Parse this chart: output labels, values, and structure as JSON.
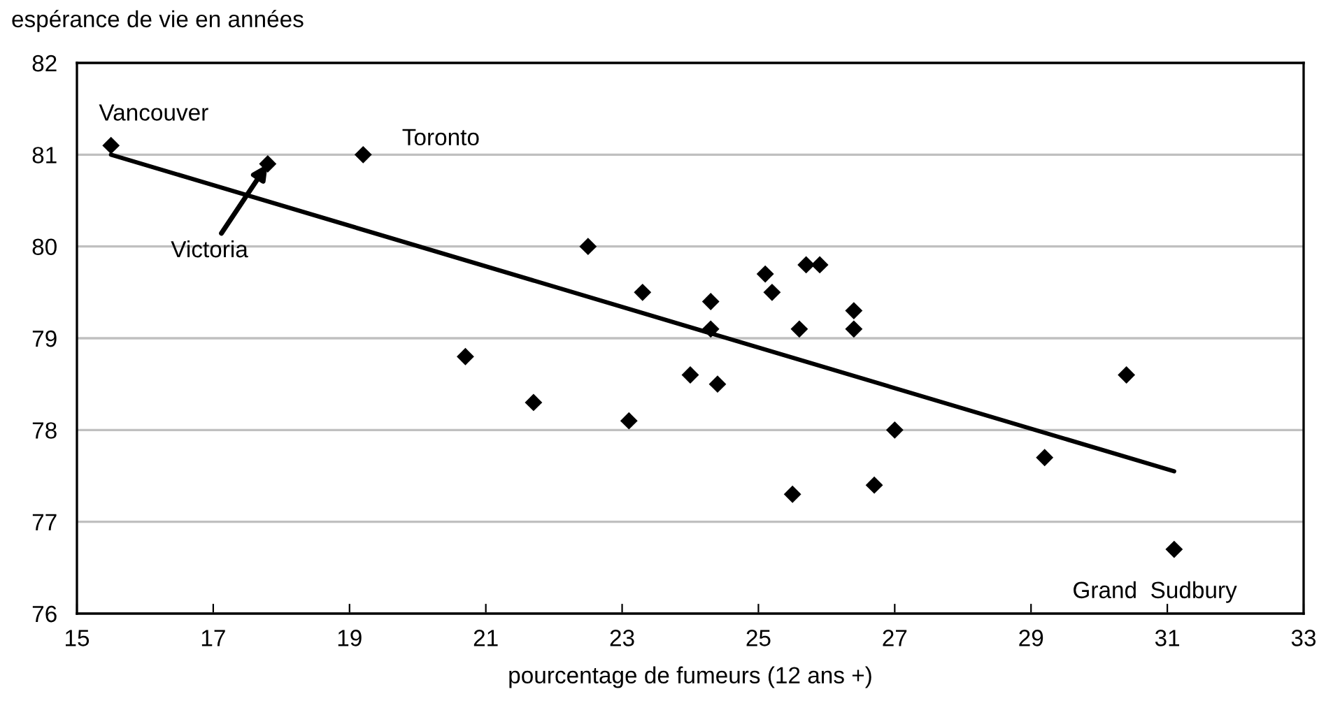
{
  "chart_data": {
    "type": "scatter",
    "ylabel": "espérance de vie en années",
    "xlabel": "pourcentage de fumeurs (12 ans +)",
    "xlim": [
      15,
      33
    ],
    "xticks": [
      15,
      17,
      19,
      21,
      23,
      25,
      27,
      29,
      31,
      33
    ],
    "ylim": [
      76,
      82
    ],
    "yticks": [
      76,
      77,
      78,
      79,
      80,
      81,
      82
    ],
    "grid": "y",
    "legend": false,
    "series": [
      {
        "color": "#000000",
        "marker": "diamond",
        "x": [
          15.5,
          17.8,
          19.2,
          20.7,
          21.7,
          22.5,
          23.1,
          23.3,
          24.0,
          24.3,
          24.3,
          24.4,
          25.1,
          25.2,
          25.5,
          25.6,
          25.7,
          25.9,
          26.4,
          26.4,
          26.7,
          27.0,
          29.2,
          30.4,
          31.1
        ],
        "values": [
          81.1,
          80.9,
          81.0,
          78.8,
          78.3,
          80.0,
          78.1,
          79.5,
          78.6,
          79.1,
          79.4,
          78.5,
          79.7,
          79.5,
          77.3,
          79.1,
          79.8,
          79.8,
          79.3,
          79.1,
          77.4,
          78.0,
          77.7,
          78.6,
          76.7
        ]
      },
      {
        "type": "line",
        "color": "#000000",
        "marker": "none",
        "x": [
          15.5,
          31.1
        ],
        "values": [
          81.0,
          77.55
        ]
      }
    ],
    "annotations": [
      {
        "text": "Vancouver",
        "x": 15.5,
        "y": 81.1
      },
      {
        "text": "Victoria",
        "x": 17.8,
        "y": 80.9
      },
      {
        "text": "Toronto",
        "x": 19.2,
        "y": 81.0
      },
      {
        "text": "Grand  Sudbury",
        "x": 31.1,
        "y": 76.7
      }
    ]
  }
}
